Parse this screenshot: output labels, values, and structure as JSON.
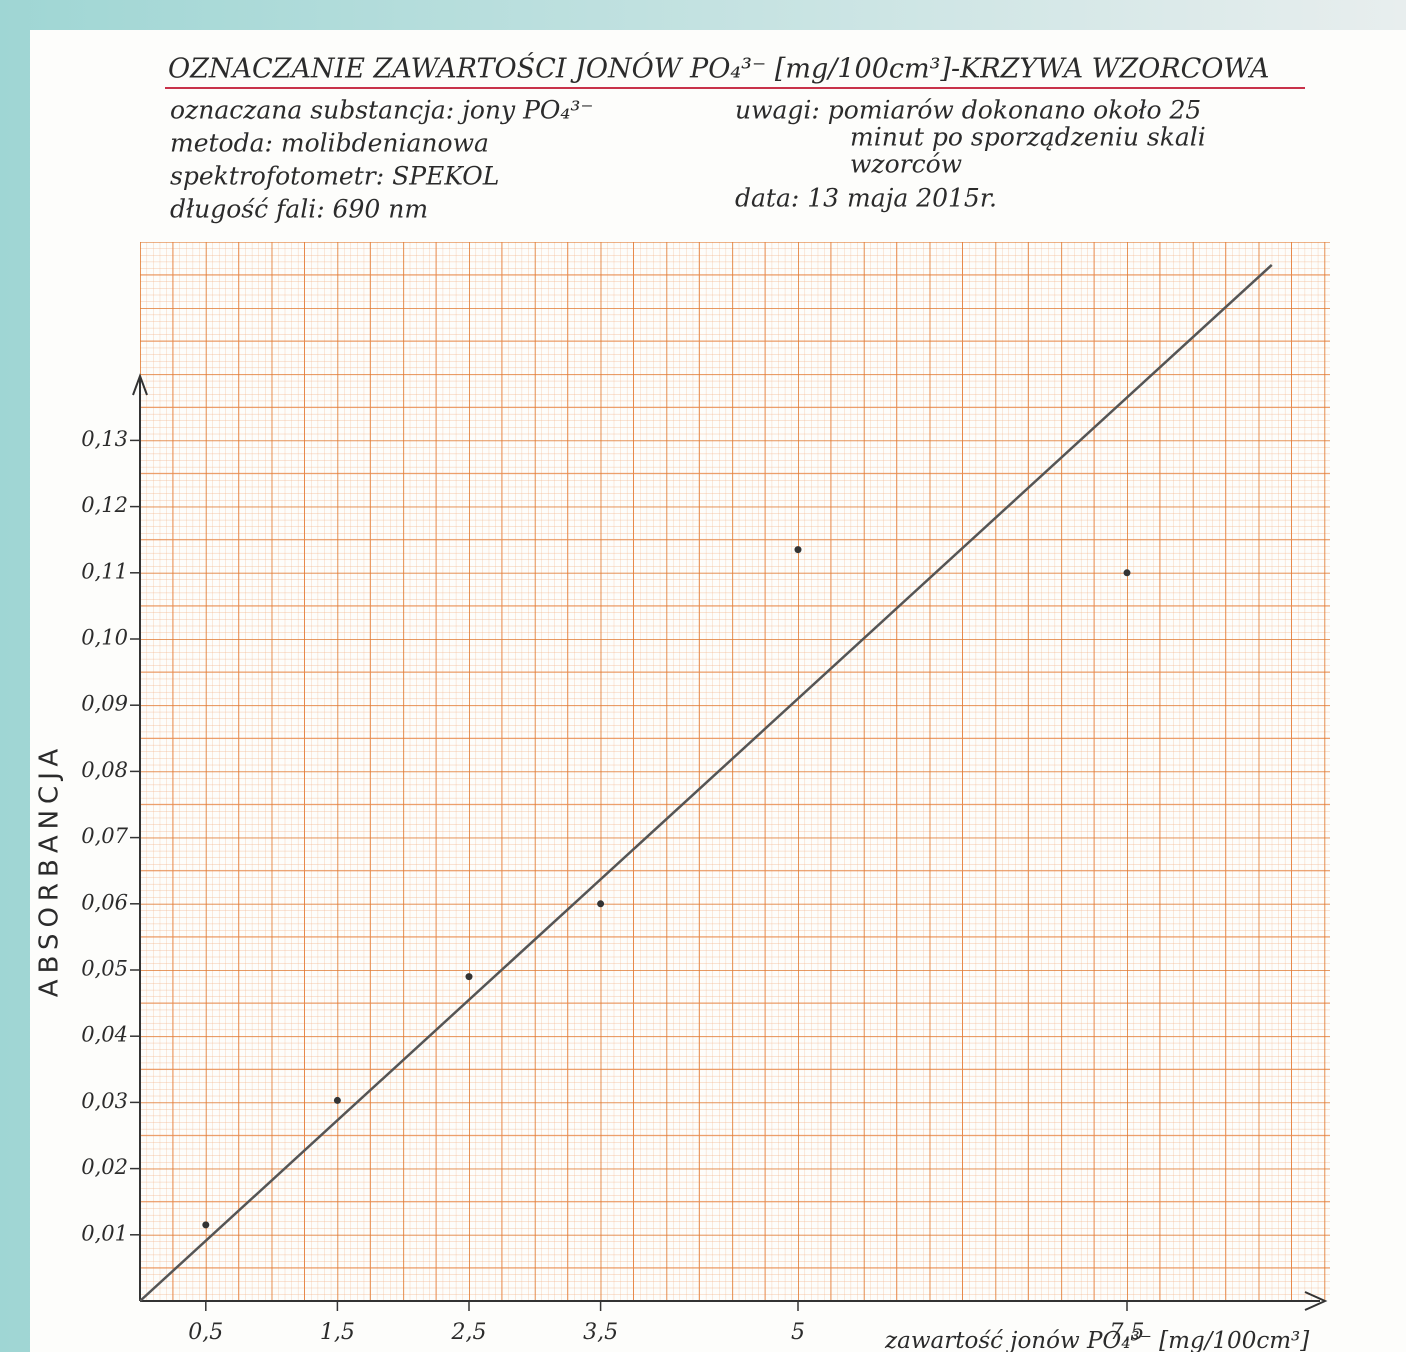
{
  "chart_data": {
    "type": "scatter",
    "title": "OZNACZANIE ZAWARTOŚCI JONÓW PO₄³⁻ [mg/100cm³]-KRZYWA WZORCOWA",
    "info": [
      "oznaczana substancja: jony PO₄³⁻",
      "metoda: molibdenianowa",
      "spektrofotometr: SPEKOL",
      "długość fali: 690 nm"
    ],
    "notes": [
      "uwagi: pomiarów dokonano około 25",
      "minut po sporządzeniu skali",
      "wzorców"
    ],
    "date": "data: 13 maja 2015r.",
    "y_label": "ABSORBANCJA",
    "x_label": "zawartość jonów PO₄³⁻ [mg/100cm³]",
    "series": [
      {
        "type": "scatter",
        "color": "#333333",
        "x": [
          0.5,
          1.5,
          2.5,
          3.5,
          5,
          7.5
        ],
        "values": [
          0.0115,
          0.0303,
          0.049,
          0.06,
          0.1135,
          0.11
        ]
      },
      {
        "type": "line",
        "color": "#555555",
        "x": [
          0,
          8.6
        ],
        "values": [
          0,
          0.1565
        ]
      }
    ],
    "xlim": [
      0,
      9
    ],
    "ylim": [
      0,
      0.16
    ],
    "xticks": [
      {
        "value": 0.5,
        "label": "0,5"
      },
      {
        "value": 1.5,
        "label": "1,5"
      },
      {
        "value": 2.5,
        "label": "2,5"
      },
      {
        "value": 3.5,
        "label": "3,5"
      },
      5,
      {
        "value": 7.5,
        "label": "7,5"
      }
    ],
    "yticks": [
      {
        "value": 0.01,
        "label": "0,01"
      },
      {
        "value": 0.02,
        "label": "0,02"
      },
      {
        "value": 0.03,
        "label": "0,03"
      },
      {
        "value": 0.04,
        "label": "0,04"
      },
      {
        "value": 0.05,
        "label": "0,05"
      },
      {
        "value": 0.06,
        "label": "0,06"
      },
      {
        "value": 0.07,
        "label": "0,07"
      },
      {
        "value": 0.08,
        "label": "0,08"
      },
      {
        "value": 0.09,
        "label": "0,09"
      },
      {
        "value": 0.1,
        "label": "0,10"
      },
      {
        "value": 0.11,
        "label": "0,11"
      },
      {
        "value": 0.12,
        "label": "0,12"
      },
      {
        "value": 0.13,
        "label": "0,13"
      }
    ]
  }
}
